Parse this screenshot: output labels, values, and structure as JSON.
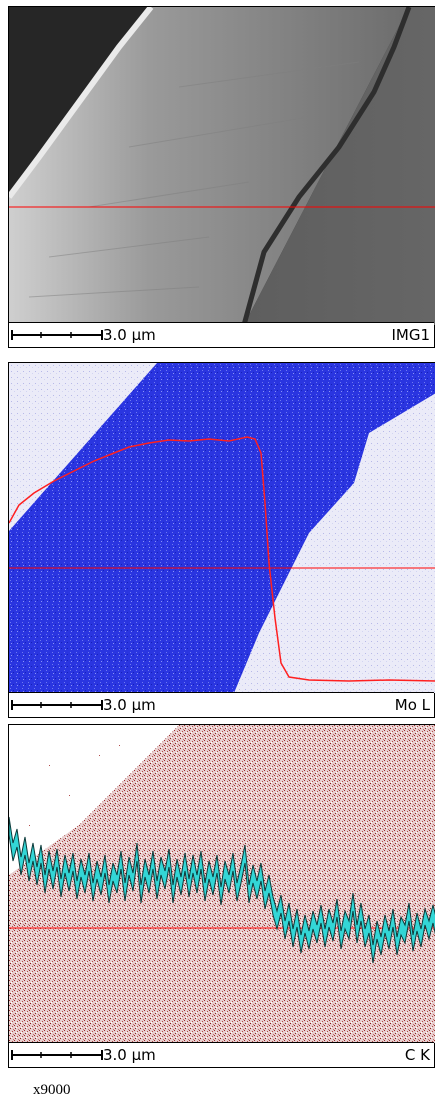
{
  "panels": [
    {
      "scale_label": "3.0 µm",
      "image_label": "IMG1"
    },
    {
      "scale_label": "3.0 µm",
      "image_label": "Mo L",
      "profile_color": "#ff2020",
      "map_color": "#2a35e0"
    },
    {
      "scale_label": "3.0 µm",
      "image_label": "C K",
      "profile_color": "#33d6d6",
      "map_color": "#9a3030"
    }
  ],
  "magnification": "x9000",
  "colors": {
    "line_marker": "#ff0000"
  }
}
